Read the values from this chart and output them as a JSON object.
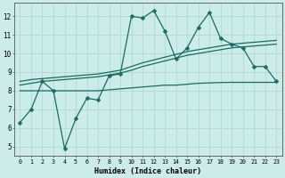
{
  "xlabel": "Humidex (Indice chaleur)",
  "bg_color": "#ccecea",
  "grid_color": "#b0d8d5",
  "line_color": "#1a6b60",
  "xlim": [
    -0.5,
    23.5
  ],
  "ylim": [
    4.5,
    12.7
  ],
  "xticks": [
    0,
    1,
    2,
    3,
    4,
    5,
    6,
    7,
    8,
    9,
    10,
    11,
    12,
    13,
    14,
    15,
    16,
    17,
    18,
    19,
    20,
    21,
    22,
    23
  ],
  "yticks": [
    5,
    6,
    7,
    8,
    9,
    10,
    11,
    12
  ],
  "main_line_x": [
    0,
    1,
    2,
    3,
    4,
    5,
    6,
    7,
    8,
    9,
    10,
    11,
    12,
    13,
    14,
    15,
    16,
    17,
    18,
    19,
    20,
    21,
    22,
    23
  ],
  "main_line_y": [
    6.3,
    7.0,
    8.5,
    8.0,
    4.9,
    6.5,
    7.6,
    7.5,
    8.8,
    8.9,
    12.0,
    11.9,
    12.3,
    11.2,
    9.7,
    10.3,
    11.4,
    12.2,
    10.8,
    10.5,
    10.3,
    9.3,
    9.3,
    8.5
  ],
  "trend_upper_x": [
    0,
    1,
    2,
    3,
    4,
    5,
    6,
    7,
    8,
    9,
    10,
    11,
    12,
    13,
    14,
    15,
    16,
    17,
    18,
    19,
    20,
    21,
    22,
    23
  ],
  "trend_upper_y": [
    8.5,
    8.6,
    8.65,
    8.7,
    8.75,
    8.8,
    8.85,
    8.9,
    9.0,
    9.1,
    9.3,
    9.5,
    9.65,
    9.8,
    9.95,
    10.1,
    10.2,
    10.3,
    10.4,
    10.5,
    10.55,
    10.6,
    10.65,
    10.7
  ],
  "trend_mid_x": [
    0,
    1,
    2,
    3,
    4,
    5,
    6,
    7,
    8,
    9,
    10,
    11,
    12,
    13,
    14,
    15,
    16,
    17,
    18,
    19,
    20,
    21,
    22,
    23
  ],
  "trend_mid_y": [
    8.3,
    8.4,
    8.5,
    8.55,
    8.6,
    8.65,
    8.7,
    8.75,
    8.85,
    8.95,
    9.1,
    9.3,
    9.45,
    9.6,
    9.75,
    9.9,
    10.0,
    10.1,
    10.2,
    10.3,
    10.35,
    10.4,
    10.45,
    10.5
  ],
  "flat_line_x": [
    0,
    1,
    2,
    3,
    4,
    5,
    6,
    7,
    8,
    9,
    10,
    11,
    12,
    13,
    14,
    15,
    16,
    17,
    18,
    19,
    20,
    21,
    22,
    23
  ],
  "flat_line_y": [
    8.0,
    8.0,
    8.0,
    8.0,
    8.0,
    8.0,
    8.0,
    8.0,
    8.05,
    8.1,
    8.15,
    8.2,
    8.25,
    8.3,
    8.3,
    8.35,
    8.4,
    8.42,
    8.44,
    8.45,
    8.45,
    8.45,
    8.45,
    8.45
  ]
}
